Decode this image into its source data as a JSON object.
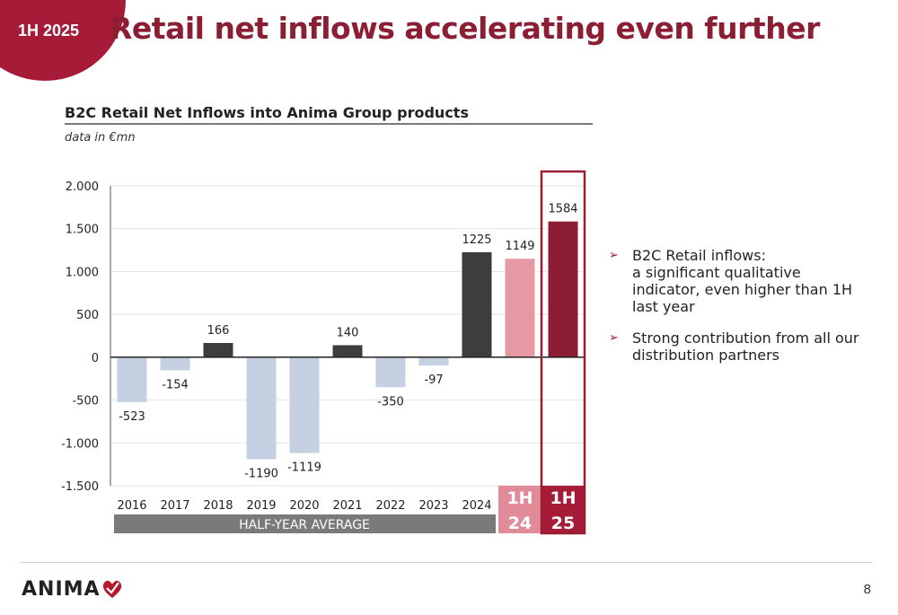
{
  "header": {
    "badge": "1H 2025",
    "title": "Retail net inflows accelerating even further"
  },
  "chart_title": "B2C Retail Net Inflows into Anima Group products",
  "chart_units": "data in €mn",
  "chart_data": {
    "type": "bar",
    "title": "B2C Retail Net Inflows into Anima Group products",
    "subtitle": "data in €mn",
    "categories": [
      "2016",
      "2017",
      "2018",
      "2019",
      "2020",
      "2021",
      "2022",
      "2023",
      "2024",
      "1H 24",
      "1H 25"
    ],
    "values": [
      -523,
      -154,
      166,
      -1190,
      -1119,
      140,
      -350,
      -97,
      1225,
      1149,
      1584
    ],
    "ylim": [
      -1500,
      2000
    ],
    "yticks": [
      2000,
      1500,
      1000,
      500,
      0,
      -500,
      -1000,
      -1500
    ],
    "ytick_labels": [
      "2.000",
      "1.500",
      "1.000",
      "500",
      "0",
      "-500",
      "-1.000",
      "-1.500"
    ],
    "group_label": "HALF-YEAR AVERAGE",
    "grid": true,
    "colors": {
      "negative": "#c5d0e2",
      "positive_annual": "#3d3d3d",
      "h1_24": "#e699a3",
      "h1_25": "#8b1e33",
      "h1_24_label_bg": "#e28b98",
      "h1_25_label_bg": "#a51b38",
      "group_bg": "#7a7a7a",
      "highlight_border": "#9b1b30"
    }
  },
  "bullets": [
    {
      "lines": [
        "B2C Retail inflows:",
        "a significant qualitative",
        "indicator, even higher than 1H",
        "last year"
      ]
    },
    {
      "lines": [
        "Strong contribution from all our",
        "distribution partners"
      ]
    }
  ],
  "footer": {
    "logo": "ANIMA",
    "page": "8"
  }
}
